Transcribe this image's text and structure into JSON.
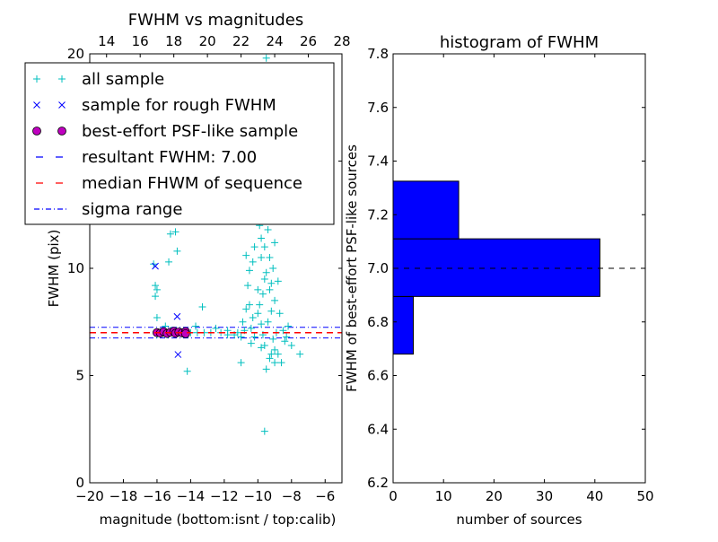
{
  "chart_data": [
    {
      "type": "scatter",
      "title": "FWHM vs magnitudes",
      "xlabel": "magnitude (bottom:isnt / top:calib)",
      "ylabel": "FWHM (pix)",
      "xlim": [
        -20,
        -5
      ],
      "ylim": [
        0,
        20
      ],
      "xticks": [
        "−20",
        "−18",
        "−16",
        "−14",
        "−12",
        "−10",
        "−8",
        "−6"
      ],
      "xtick_values": [
        -20,
        -18,
        -16,
        -14,
        -12,
        -10,
        -8,
        -6
      ],
      "yticks": [
        "0",
        "5",
        "10",
        "15",
        "20"
      ],
      "ytick_values": [
        0,
        5,
        10,
        15,
        20
      ],
      "top_xticks": [
        "14",
        "16",
        "18",
        "20",
        "22",
        "24",
        "26",
        "28"
      ],
      "top_xtick_values": [
        14,
        16,
        18,
        20,
        22,
        24,
        26,
        28
      ],
      "top_offset": 33,
      "legend_position": "top-left",
      "legend": [
        {
          "label": "all sample",
          "marker": "+",
          "color": "#00bfbf"
        },
        {
          "label": "sample for rough FWHM",
          "marker": "x",
          "color": "#0000ff"
        },
        {
          "label": "best-effort PSF-like sample",
          "marker": "o",
          "color": "#bf00bf"
        },
        {
          "label": "resultant FWHM: 7.00",
          "style": "dashed",
          "color": "#0000ff"
        },
        {
          "label": "median FHWM of sequence",
          "style": "dashed",
          "color": "#ff0000"
        },
        {
          "label": "sigma range",
          "style": "dashdot",
          "color": "#0000ff"
        }
      ],
      "resultant_fwhm": 7.0,
      "median_fwhm": 7.0,
      "sigma_range": [
        6.75,
        7.25
      ],
      "all_sample": [
        [
          -16.2,
          10.2
        ],
        [
          -16.1,
          9.2
        ],
        [
          -16.0,
          9.0
        ],
        [
          -16.1,
          8.7
        ],
        [
          -16.0,
          7.7
        ],
        [
          -15.5,
          7.3
        ],
        [
          -15.3,
          10.3
        ],
        [
          -15.2,
          11.6
        ],
        [
          -14.9,
          11.7
        ],
        [
          -14.8,
          10.8
        ],
        [
          -14.6,
          12.5
        ],
        [
          -14.2,
          5.2
        ],
        [
          -13.7,
          7.3
        ],
        [
          -13.3,
          8.2
        ],
        [
          -12.5,
          7.2
        ],
        [
          -11.8,
          7.1
        ],
        [
          -11.2,
          7.0
        ],
        [
          -10.7,
          10.6
        ],
        [
          -10.5,
          9.9
        ],
        [
          -10.6,
          9.2
        ],
        [
          -10.0,
          9.0
        ],
        [
          -9.8,
          10.5
        ],
        [
          -10.3,
          10.3
        ],
        [
          -10.7,
          8.1
        ],
        [
          -11.0,
          6.8
        ],
        [
          -11.0,
          5.6
        ],
        [
          -10.3,
          7.7
        ],
        [
          -9.6,
          2.4
        ],
        [
          -9.5,
          5.3
        ],
        [
          -9.0,
          5.6
        ],
        [
          -8.4,
          6.6
        ],
        [
          -8.0,
          6.4
        ],
        [
          -7.5,
          6.0
        ],
        [
          -8.6,
          5.6
        ],
        [
          -9.2,
          6.0
        ],
        [
          -9.8,
          6.3
        ],
        [
          -9.4,
          7.5
        ],
        [
          -9.2,
          8.0
        ],
        [
          -9.0,
          8.5
        ],
        [
          -9.3,
          9.0
        ],
        [
          -9.5,
          9.8
        ],
        [
          -9.3,
          10.5
        ],
        [
          -9.6,
          11.0
        ],
        [
          -9.4,
          11.8
        ],
        [
          -9.5,
          12.5
        ],
        [
          -9.7,
          13.5
        ],
        [
          -9.4,
          14.2
        ],
        [
          -9.6,
          15.0
        ],
        [
          -9.5,
          16.0
        ],
        [
          -9.3,
          17.0
        ],
        [
          -9.5,
          18.0
        ],
        [
          -9.4,
          19.0
        ],
        [
          -9.5,
          19.8
        ],
        [
          -9.9,
          12.0
        ],
        [
          -10.1,
          13.0
        ],
        [
          -9.2,
          12.8
        ],
        [
          -9.0,
          11.2
        ],
        [
          -8.8,
          9.4
        ],
        [
          -8.7,
          7.9
        ],
        [
          -8.5,
          7.1
        ],
        [
          -8.9,
          7.0
        ],
        [
          -9.1,
          6.7
        ],
        [
          -9.7,
          6.9
        ],
        [
          -10.2,
          6.8
        ],
        [
          -10.4,
          7.2
        ],
        [
          -10.8,
          7.1
        ],
        [
          -11.4,
          6.9
        ],
        [
          -11.8,
          6.9
        ],
        [
          -12.2,
          7.0
        ],
        [
          -12.8,
          7.0
        ],
        [
          -13.2,
          7.0
        ],
        [
          -13.6,
          7.0
        ],
        [
          -14.0,
          7.0
        ],
        [
          -9.8,
          7.4
        ],
        [
          -9.9,
          8.3
        ],
        [
          -10.0,
          7.9
        ],
        [
          -9.7,
          8.8
        ],
        [
          -9.6,
          9.5
        ],
        [
          -9.2,
          9.3
        ],
        [
          -9.1,
          10.0
        ],
        [
          -9.8,
          11.4
        ],
        [
          -10.2,
          11.0
        ],
        [
          -9.0,
          6.2
        ],
        [
          -8.8,
          6.0
        ],
        [
          -9.3,
          5.8
        ],
        [
          -9.6,
          6.4
        ],
        [
          -10.4,
          6.5
        ],
        [
          -8.3,
          6.8
        ],
        [
          -8.2,
          7.3
        ],
        [
          -10.5,
          8.3
        ],
        [
          -10.9,
          7.5
        ],
        [
          -15.4,
          6.9
        ],
        [
          -15.2,
          7.1
        ],
        [
          -15.9,
          7.0
        ],
        [
          -16.0,
          6.9
        ]
      ],
      "rough_sample": [
        [
          -16.1,
          10.1
        ],
        [
          -14.8,
          7.75
        ],
        [
          -14.75,
          5.98
        ]
      ],
      "psf_sample": [
        [
          -16.0,
          7.0
        ],
        [
          -15.8,
          6.98
        ],
        [
          -15.6,
          7.04
        ],
        [
          -15.4,
          6.96
        ],
        [
          -15.2,
          7.02
        ],
        [
          -15.0,
          7.06
        ],
        [
          -14.9,
          6.97
        ],
        [
          -14.7,
          7.03
        ],
        [
          -14.5,
          6.99
        ],
        [
          -14.3,
          7.05
        ],
        [
          -14.3,
          6.95
        ]
      ]
    },
    {
      "type": "bar",
      "orientation": "horizontal",
      "title": "histogram of FWHM",
      "xlabel": "number of sources",
      "ylabel": "FWHM of best-effort PSF-like sources",
      "xlim": [
        0,
        50
      ],
      "ylim": [
        6.2,
        7.8
      ],
      "xticks": [
        "0",
        "10",
        "20",
        "30",
        "40",
        "50"
      ],
      "xtick_values": [
        0,
        10,
        20,
        30,
        40,
        50
      ],
      "yticks": [
        "6.2",
        "6.4",
        "6.6",
        "6.8",
        "7.0",
        "7.2",
        "7.4",
        "7.6",
        "7.8"
      ],
      "ytick_values": [
        6.2,
        6.4,
        6.6,
        6.8,
        7.0,
        7.2,
        7.4,
        7.6,
        7.8
      ],
      "bin_edges": [
        6.68,
        6.895,
        7.11,
        7.325
      ],
      "counts": [
        4,
        41,
        13
      ],
      "bar_color": "#0000ff",
      "reference_line": 7.0
    }
  ]
}
